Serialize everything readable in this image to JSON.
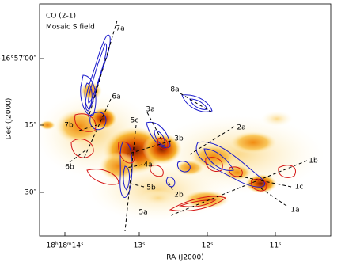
{
  "title": "CO (2-1)",
  "subtitle": "Mosaic S field",
  "xlabel": "RA (J2000)",
  "ylabel": "Dec (J2000)",
  "xticks": [
    "18ʰ18ᵐ14ˢ",
    "13ˢ",
    "12ˢ",
    "11ˢ"
  ],
  "yticks": [
    "-16°57′00″",
    "15″",
    "30″"
  ],
  "annotations": [
    "7a",
    "6a",
    "7b",
    "6b",
    "5c",
    "3a",
    "3b",
    "4a",
    "5b",
    "5a",
    "8a",
    "2a",
    "2b",
    "1b",
    "1c",
    "1a"
  ]
}
